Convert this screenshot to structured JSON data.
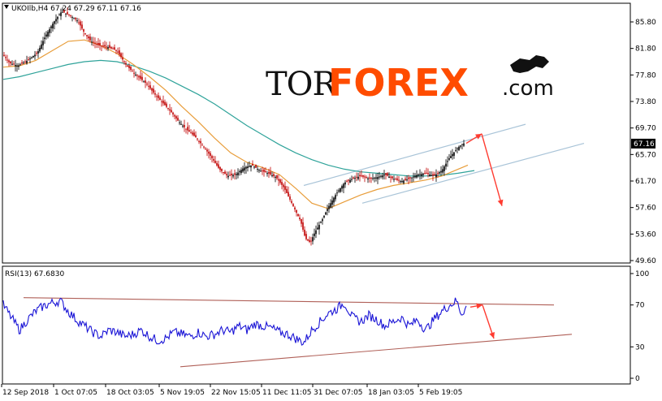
{
  "chart_data": [
    {
      "type": "candlestick",
      "header": "UKOIlb,H4  67.24 67.29 67.11 67.16",
      "last_price_label": "67.16",
      "yticks": [
        "85.80",
        "81.80",
        "77.80",
        "73.80",
        "69.70",
        "65.70",
        "61.70",
        "57.60",
        "53.60",
        "49.60"
      ],
      "ylim": [
        49.6,
        87.8
      ],
      "xticks": [
        "12 Sep 2018",
        "1 Oct 07:05",
        "18 Oct 03:05",
        "5 Nov 19:05",
        "22 Nov 15:05",
        "11 Dec 11:05",
        "31 Dec 07:05",
        "18 Jan 03:05",
        "5 Feb 19:05"
      ],
      "price_path": [
        [
          0,
          80.2
        ],
        [
          8,
          79.0
        ],
        [
          18,
          78.6
        ],
        [
          30,
          79.4
        ],
        [
          42,
          80.5
        ],
        [
          52,
          83.0
        ],
        [
          62,
          85.0
        ],
        [
          72,
          86.6
        ],
        [
          82,
          86.0
        ],
        [
          92,
          85.2
        ],
        [
          100,
          83.4
        ],
        [
          108,
          82.2
        ],
        [
          118,
          81.6
        ],
        [
          128,
          81.4
        ],
        [
          140,
          80.8
        ],
        [
          152,
          78.6
        ],
        [
          164,
          77.2
        ],
        [
          176,
          76.0
        ],
        [
          186,
          74.5
        ],
        [
          196,
          73.2
        ],
        [
          206,
          71.9
        ],
        [
          216,
          70.4
        ],
        [
          226,
          69.2
        ],
        [
          236,
          68.2
        ],
        [
          246,
          66.8
        ],
        [
          256,
          65.2
        ],
        [
          266,
          63.4
        ],
        [
          276,
          62.4
        ],
        [
          286,
          62.6
        ],
        [
          296,
          63.6
        ],
        [
          306,
          64.0
        ],
        [
          316,
          63.2
        ],
        [
          326,
          62.8
        ],
        [
          336,
          62.2
        ],
        [
          346,
          60.6
        ],
        [
          356,
          58.2
        ],
        [
          366,
          55.8
        ],
        [
          372,
          53.2
        ],
        [
          378,
          52.6
        ],
        [
          384,
          54.2
        ],
        [
          392,
          55.8
        ],
        [
          400,
          57.8
        ],
        [
          410,
          59.8
        ],
        [
          420,
          61.4
        ],
        [
          430,
          62.0
        ],
        [
          440,
          62.4
        ],
        [
          450,
          62.0
        ],
        [
          460,
          62.2
        ],
        [
          470,
          62.6
        ],
        [
          480,
          62.0
        ],
        [
          490,
          61.6
        ],
        [
          500,
          62.0
        ],
        [
          510,
          62.6
        ],
        [
          520,
          62.8
        ],
        [
          530,
          62.4
        ],
        [
          540,
          63.2
        ],
        [
          550,
          65.2
        ],
        [
          560,
          66.6
        ],
        [
          566,
          67.2
        ],
        [
          570,
          67.16
        ]
      ],
      "ma_fast_path": [
        [
          0,
          78.4
        ],
        [
          20,
          78.6
        ],
        [
          40,
          79.4
        ],
        [
          60,
          80.8
        ],
        [
          80,
          82.2
        ],
        [
          100,
          82.4
        ],
        [
          120,
          81.6
        ],
        [
          140,
          80.4
        ],
        [
          160,
          78.8
        ],
        [
          180,
          77.0
        ],
        [
          200,
          75.0
        ],
        [
          220,
          72.6
        ],
        [
          240,
          70.4
        ],
        [
          260,
          68.0
        ],
        [
          280,
          65.8
        ],
        [
          300,
          64.4
        ],
        [
          320,
          63.6
        ],
        [
          340,
          62.6
        ],
        [
          360,
          60.6
        ],
        [
          380,
          58.4
        ],
        [
          400,
          57.6
        ],
        [
          420,
          58.6
        ],
        [
          440,
          59.6
        ],
        [
          460,
          60.4
        ],
        [
          480,
          61.0
        ],
        [
          500,
          61.4
        ],
        [
          520,
          61.8
        ],
        [
          540,
          62.4
        ],
        [
          560,
          63.4
        ],
        [
          572,
          64.0
        ]
      ],
      "ma_slow_path": [
        [
          0,
          76.6
        ],
        [
          20,
          77.0
        ],
        [
          40,
          77.6
        ],
        [
          60,
          78.2
        ],
        [
          80,
          78.8
        ],
        [
          100,
          79.2
        ],
        [
          120,
          79.4
        ],
        [
          140,
          79.2
        ],
        [
          160,
          78.6
        ],
        [
          180,
          77.8
        ],
        [
          200,
          76.8
        ],
        [
          220,
          75.6
        ],
        [
          240,
          74.4
        ],
        [
          260,
          73.0
        ],
        [
          280,
          71.4
        ],
        [
          300,
          69.8
        ],
        [
          320,
          68.4
        ],
        [
          340,
          67.0
        ],
        [
          360,
          65.8
        ],
        [
          380,
          64.8
        ],
        [
          400,
          64.0
        ],
        [
          420,
          63.4
        ],
        [
          440,
          63.0
        ],
        [
          460,
          62.8
        ],
        [
          480,
          62.6
        ],
        [
          500,
          62.4
        ],
        [
          520,
          62.4
        ],
        [
          540,
          62.5
        ],
        [
          560,
          62.8
        ],
        [
          580,
          63.2
        ]
      ],
      "channel_upper": [
        [
          370,
          61.0
        ],
        [
          643,
          70.0
        ]
      ],
      "channel_lower": [
        [
          442,
          58.4
        ],
        [
          715,
          67.2
        ]
      ],
      "forecast_arrow_up": [
        [
          570,
          67.2
        ],
        [
          589,
          68.6
        ]
      ],
      "forecast_arrow_down": [
        [
          589,
          68.6
        ],
        [
          614,
          58.0
        ]
      ]
    },
    {
      "type": "line",
      "title": "RSI(13) 67.6830",
      "yticks": [
        "100",
        "70",
        "30",
        "0"
      ],
      "ylim": [
        0,
        100
      ],
      "rsi_path": [
        [
          0,
          70
        ],
        [
          10,
          58
        ],
        [
          20,
          46
        ],
        [
          30,
          56
        ],
        [
          40,
          64
        ],
        [
          50,
          69
        ],
        [
          60,
          72
        ],
        [
          70,
          74
        ],
        [
          80,
          64
        ],
        [
          90,
          56
        ],
        [
          100,
          50
        ],
        [
          110,
          44
        ],
        [
          120,
          40
        ],
        [
          130,
          46
        ],
        [
          140,
          44
        ],
        [
          150,
          40
        ],
        [
          160,
          42
        ],
        [
          170,
          46
        ],
        [
          180,
          40
        ],
        [
          190,
          36
        ],
        [
          200,
          38
        ],
        [
          210,
          44
        ],
        [
          220,
          42
        ],
        [
          230,
          40
        ],
        [
          240,
          44
        ],
        [
          250,
          40
        ],
        [
          260,
          42
        ],
        [
          270,
          46
        ],
        [
          280,
          44
        ],
        [
          290,
          50
        ],
        [
          300,
          46
        ],
        [
          310,
          52
        ],
        [
          320,
          50
        ],
        [
          330,
          48
        ],
        [
          340,
          44
        ],
        [
          350,
          42
        ],
        [
          360,
          38
        ],
        [
          370,
          34
        ],
        [
          380,
          46
        ],
        [
          390,
          54
        ],
        [
          400,
          62
        ],
        [
          410,
          66
        ],
        [
          420,
          72
        ],
        [
          430,
          58
        ],
        [
          440,
          54
        ],
        [
          450,
          60
        ],
        [
          460,
          56
        ],
        [
          470,
          50
        ],
        [
          480,
          54
        ],
        [
          490,
          58
        ],
        [
          500,
          50
        ],
        [
          510,
          56
        ],
        [
          520,
          46
        ],
        [
          530,
          56
        ],
        [
          540,
          64
        ],
        [
          550,
          70
        ],
        [
          558,
          74
        ],
        [
          564,
          62
        ],
        [
          570,
          67.68
        ]
      ],
      "trend_upper": [
        [
          25,
          77
        ],
        [
          678,
          70
        ]
      ],
      "trend_lower": [
        [
          218,
          11
        ],
        [
          700,
          42
        ]
      ],
      "forecast_arrow_up": [
        [
          575,
          68
        ],
        [
          590,
          70
        ]
      ],
      "forecast_arrow_down": [
        [
          590,
          70
        ],
        [
          604,
          38
        ]
      ]
    }
  ],
  "watermark": {
    "part1": "TOR",
    "part2": "FOREX",
    "part3": ".com"
  },
  "colors": {
    "candle_up": "#000000",
    "candle_down": "#c00000",
    "ma_fast": "#e89d3a",
    "ma_slow": "#2fa39a",
    "channel": "#a9c4d8",
    "arrow": "#ff3b30",
    "rsi": "#1a14d6",
    "rsi_trend": "#b06058"
  }
}
